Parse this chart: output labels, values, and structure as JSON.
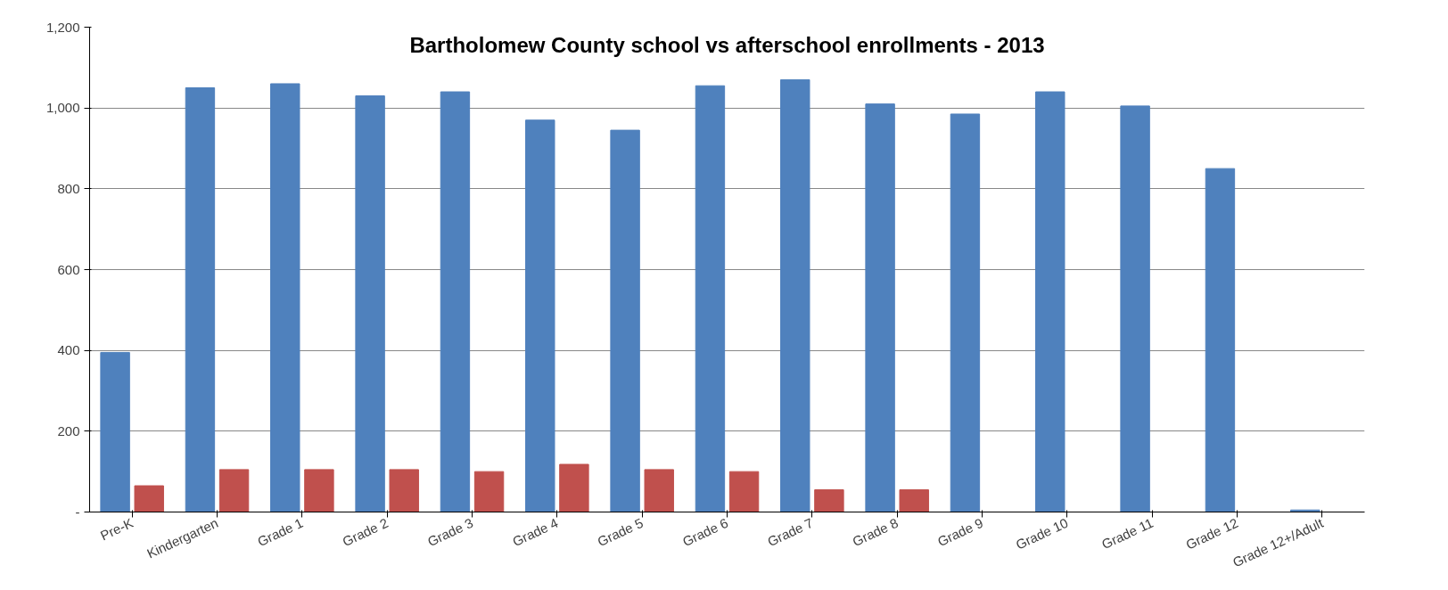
{
  "chart_data": {
    "type": "bar",
    "title": "Bartholomew County school vs afterschool enrollments - 2013",
    "categories": [
      "Pre-K",
      "Kindergarten",
      "Grade 1",
      "Grade 2",
      "Grade 3",
      "Grade 4",
      "Grade 5",
      "Grade 6",
      "Grade 7",
      "Grade 8",
      "Grade 9",
      "Grade 10",
      "Grade 11",
      "Grade 12",
      "Grade 12+/Adult"
    ],
    "series": [
      {
        "color": "#4f81bd",
        "values": [
          395,
          1050,
          1060,
          1030,
          1040,
          970,
          945,
          1055,
          1070,
          1010,
          985,
          1040,
          1005,
          850,
          5
        ]
      },
      {
        "color": "#c0504d",
        "values": [
          65,
          105,
          105,
          105,
          100,
          118,
          105,
          100,
          55,
          55,
          0,
          0,
          0,
          0,
          0
        ]
      }
    ],
    "ylim": [
      0,
      1200
    ],
    "yticks": [
      {
        "value": 0,
        "label": "-"
      },
      {
        "value": 200,
        "label": "200"
      },
      {
        "value": 400,
        "label": "400"
      },
      {
        "value": 600,
        "label": "600"
      },
      {
        "value": 800,
        "label": "800"
      },
      {
        "value": 1000,
        "label": "1,000"
      },
      {
        "value": 1200,
        "label": "1,200"
      }
    ],
    "grid": "y"
  }
}
